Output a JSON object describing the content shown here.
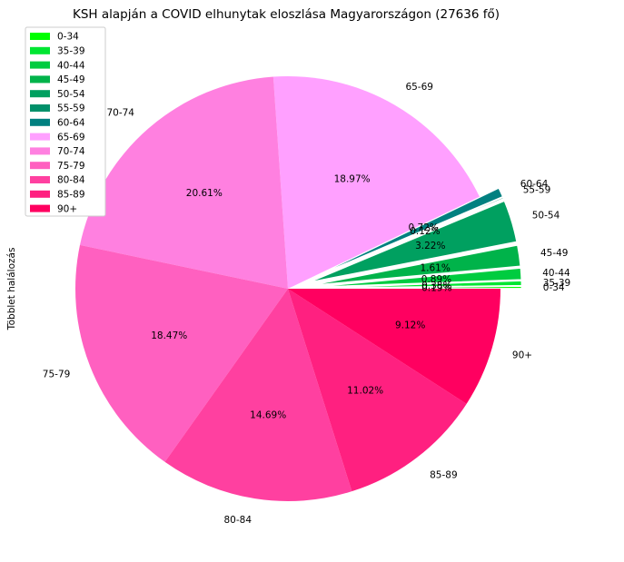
{
  "chart_data": {
    "type": "pie",
    "title": "KSH alapján a COVID elhunytak eloszlása Magyarországon (27636 fő)",
    "ylabel": "Többlet halálozás",
    "legend_position": "top-left",
    "slices": [
      {
        "label": "0-34",
        "value": 0.19,
        "pct_text": "0.19%",
        "color": "#00ff00",
        "exploded": true
      },
      {
        "label": "35-39",
        "value": 0.38,
        "pct_text": "0.38%",
        "color": "#00e632",
        "exploded": true
      },
      {
        "label": "40-44",
        "value": 0.89,
        "pct_text": "0.89%",
        "color": "#00cc40",
        "exploded": true
      },
      {
        "label": "45-49",
        "value": 1.61,
        "pct_text": "1.61%",
        "color": "#00b34a",
        "exploded": true
      },
      {
        "label": "50-54",
        "value": 3.22,
        "pct_text": "3.22%",
        "color": "#00a060",
        "exploded": true
      },
      {
        "label": "55-59",
        "value": 0.12,
        "pct_text": "0.12%",
        "color": "#00906a",
        "exploded": true
      },
      {
        "label": "60-64",
        "value": 0.72,
        "pct_text": "0.72%",
        "color": "#008080",
        "exploded": true
      },
      {
        "label": "65-69",
        "value": 18.97,
        "pct_text": "18.97%",
        "color": "#ffa0ff",
        "exploded": false
      },
      {
        "label": "70-74",
        "value": 20.61,
        "pct_text": "20.61%",
        "color": "#ff80e0",
        "exploded": false
      },
      {
        "label": "75-79",
        "value": 18.47,
        "pct_text": "18.47%",
        "color": "#ff60c0",
        "exploded": false
      },
      {
        "label": "80-84",
        "value": 14.69,
        "pct_text": "14.69%",
        "color": "#ff40a0",
        "exploded": false
      },
      {
        "label": "85-89",
        "value": 11.02,
        "pct_text": "11.02%",
        "color": "#ff2080",
        "exploded": false
      },
      {
        "label": "90+",
        "value": 9.12,
        "pct_text": "9.12%",
        "color": "#ff0060",
        "exploded": false
      }
    ]
  }
}
